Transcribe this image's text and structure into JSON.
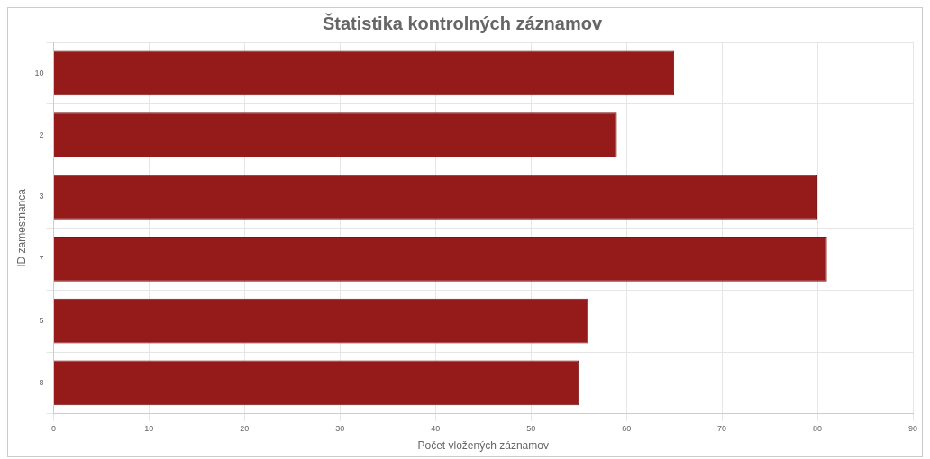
{
  "chart_data": {
    "type": "bar",
    "orientation": "horizontal",
    "title": "Štatistika kontrolných záznamov",
    "xlabel": "Počet vložených záznamov",
    "ylabel": "ID zamestnanca",
    "categories": [
      "10",
      "2",
      "3",
      "7",
      "5",
      "8"
    ],
    "values": [
      65,
      59,
      80,
      81,
      56,
      55
    ],
    "color": "#951b1b",
    "xlim": [
      0,
      90
    ],
    "xticks": [
      0,
      10,
      20,
      30,
      40,
      50,
      60,
      70,
      80,
      90
    ],
    "grid": true,
    "legend": false
  }
}
